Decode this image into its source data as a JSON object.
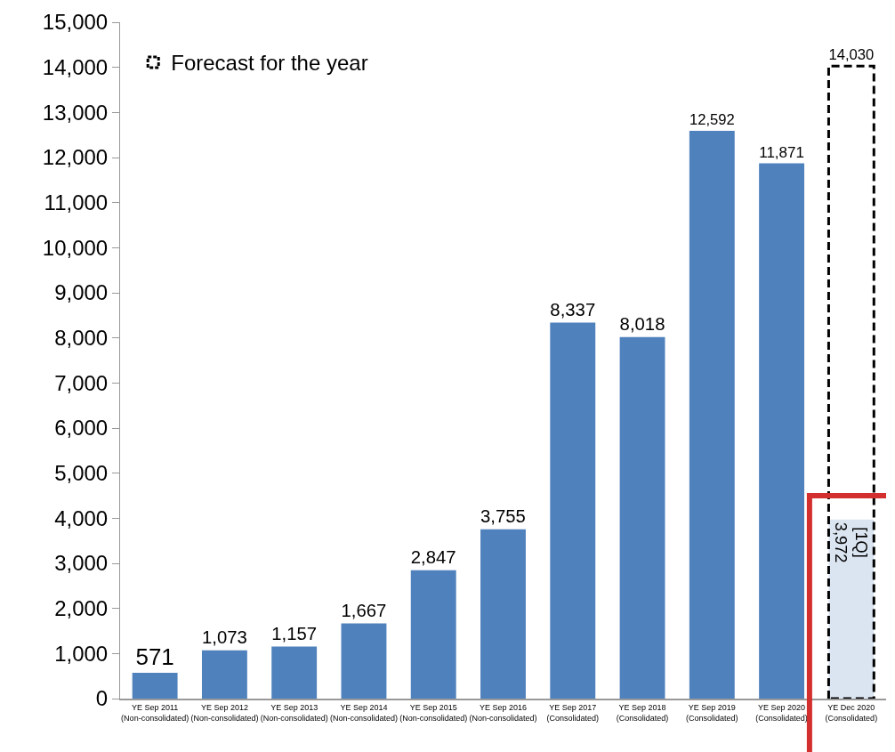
{
  "chart_data": {
    "type": "bar",
    "categories": [
      "YE Sep 2011\n(Non-consolidated)",
      "YE Sep 2012\n(Non-consolidated)",
      "YE Sep 2013\n(Non-consolidated)",
      "YE Sep 2014\n(Non-consolidated)",
      "YE Sep 2015\n(Non-consolidated)",
      "YE Sep 2016\n(Non-consolidated)",
      "YE Sep 2017\n(Consolidated)",
      "YE Sep 2018\n(Consolidated)",
      "YE Sep 2019\n(Consolidated)",
      "YE Sep 2020\n(Consolidated)",
      "YE Dec 2020\n(Consolidated)"
    ],
    "series": [
      {
        "color": "#4f81bd",
        "colors": [
          "#4f81bd",
          "#4f81bd",
          "#4f81bd",
          "#4f81bd",
          "#4f81bd",
          "#4f81bd",
          "#4f81bd",
          "#4f81bd",
          "#4f81bd",
          "#4f81bd",
          "#dbe5f1"
        ],
        "values": [
          571,
          1073,
          1157,
          1667,
          2847,
          3755,
          8337,
          8018,
          12592,
          11871,
          3972
        ],
        "value_labels": [
          "571",
          "1,073",
          "1,157",
          "1,667",
          "2,847",
          "3,755",
          "8,337",
          "8,018",
          "12,592",
          "11,871",
          "[1Q]\n3,972"
        ]
      },
      {
        "name": "Forecast for the year",
        "color": "#000000",
        "line_style": "dashed",
        "values": [
          null,
          null,
          null,
          null,
          null,
          null,
          null,
          null,
          null,
          null,
          14030
        ],
        "value_labels": [
          null,
          null,
          null,
          null,
          null,
          null,
          null,
          null,
          null,
          null,
          "14,030"
        ]
      }
    ],
    "ylim": [
      0,
      15000
    ],
    "yticks": [
      0,
      {
        "value": 1000,
        "label": "1,000"
      },
      {
        "value": 2000,
        "label": "2,000"
      },
      {
        "value": 3000,
        "label": "3,000"
      },
      {
        "value": 4000,
        "label": "4,000"
      },
      {
        "value": 5000,
        "label": "5,000"
      },
      {
        "value": 6000,
        "label": "6,000"
      },
      {
        "value": 7000,
        "label": "7,000"
      },
      {
        "value": 8000,
        "label": "8,000"
      },
      {
        "value": 9000,
        "label": "9,000"
      },
      {
        "value": 10000,
        "label": "10,000"
      },
      {
        "value": 11000,
        "label": "11,000"
      },
      {
        "value": 12000,
        "label": "12,000"
      },
      {
        "value": 13000,
        "label": "13,000"
      },
      {
        "value": 14000,
        "label": "14,000"
      },
      {
        "value": 15000,
        "label": "15,000"
      }
    ],
    "grid": false,
    "legend": "top left"
  }
}
